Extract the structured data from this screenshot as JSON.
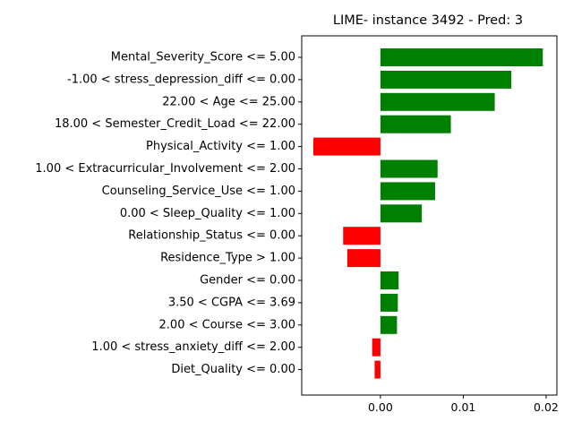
{
  "chart_data": {
    "type": "bar",
    "orientation": "horizontal",
    "title": "LIME- instance 3492 - Pred: 3",
    "xlabel": "",
    "ylabel": "",
    "xlim": [
      -0.0095,
      0.0213
    ],
    "xticks": [
      0.0,
      0.01,
      0.02
    ],
    "xtick_labels": [
      "0.00",
      "0.01",
      "0.02"
    ],
    "grid": false,
    "legend": "none",
    "positive_color": "#008000",
    "negative_color": "#ff0000",
    "categories": [
      "Mental_Severity_Score <= 5.00",
      "-1.00 < stress_depression_diff <= 0.00",
      "22.00 < Age <= 25.00",
      "18.00 < Semester_Credit_Load <= 22.00",
      "Physical_Activity <= 1.00",
      "1.00 < Extracurricular_Involvement <= 2.00",
      "Counseling_Service_Use <= 1.00",
      "0.00 < Sleep_Quality <= 1.00",
      "Relationship_Status <= 0.00",
      "Residence_Type > 1.00",
      "Gender <= 0.00",
      "3.50 < CGPA <= 3.69",
      "2.00 < Course <= 3.00",
      "1.00 < stress_anxiety_diff <= 2.00",
      "Diet_Quality <= 0.00"
    ],
    "values": [
      0.0196,
      0.0158,
      0.0138,
      0.0085,
      -0.0081,
      0.0069,
      0.0066,
      0.005,
      -0.0045,
      -0.004,
      0.0022,
      0.0021,
      0.002,
      -0.001,
      -0.0007
    ]
  }
}
